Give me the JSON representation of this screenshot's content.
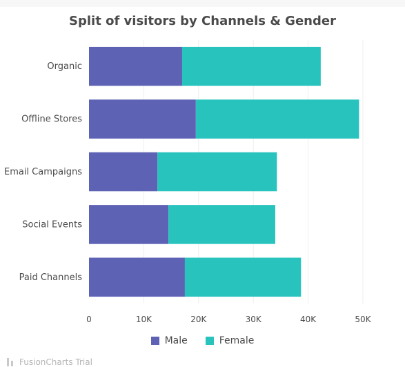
{
  "chart_data": {
    "type": "bar",
    "orientation": "horizontal",
    "stacked": true,
    "title": "Split of visitors by Channels & Gender",
    "categories": [
      "Organic",
      "Offline Stores",
      "Email Campaigns",
      "Social Events",
      "Paid Channels"
    ],
    "series": [
      {
        "name": "Male",
        "color": "#5d62b5",
        "values": [
          17000,
          19500,
          12500,
          14500,
          17500
        ]
      },
      {
        "name": "Female",
        "color": "#29c3be",
        "values": [
          25300,
          29800,
          21800,
          19500,
          21200
        ]
      }
    ],
    "xlim": [
      0,
      50000
    ],
    "x_ticks": [
      0,
      10000,
      20000,
      30000,
      40000,
      50000
    ],
    "x_tick_labels": [
      "0",
      "10K",
      "20K",
      "30K",
      "40K",
      "50K"
    ],
    "grid": true,
    "legend_position": "bottom"
  },
  "footer": {
    "credit": "FusionCharts Trial"
  }
}
